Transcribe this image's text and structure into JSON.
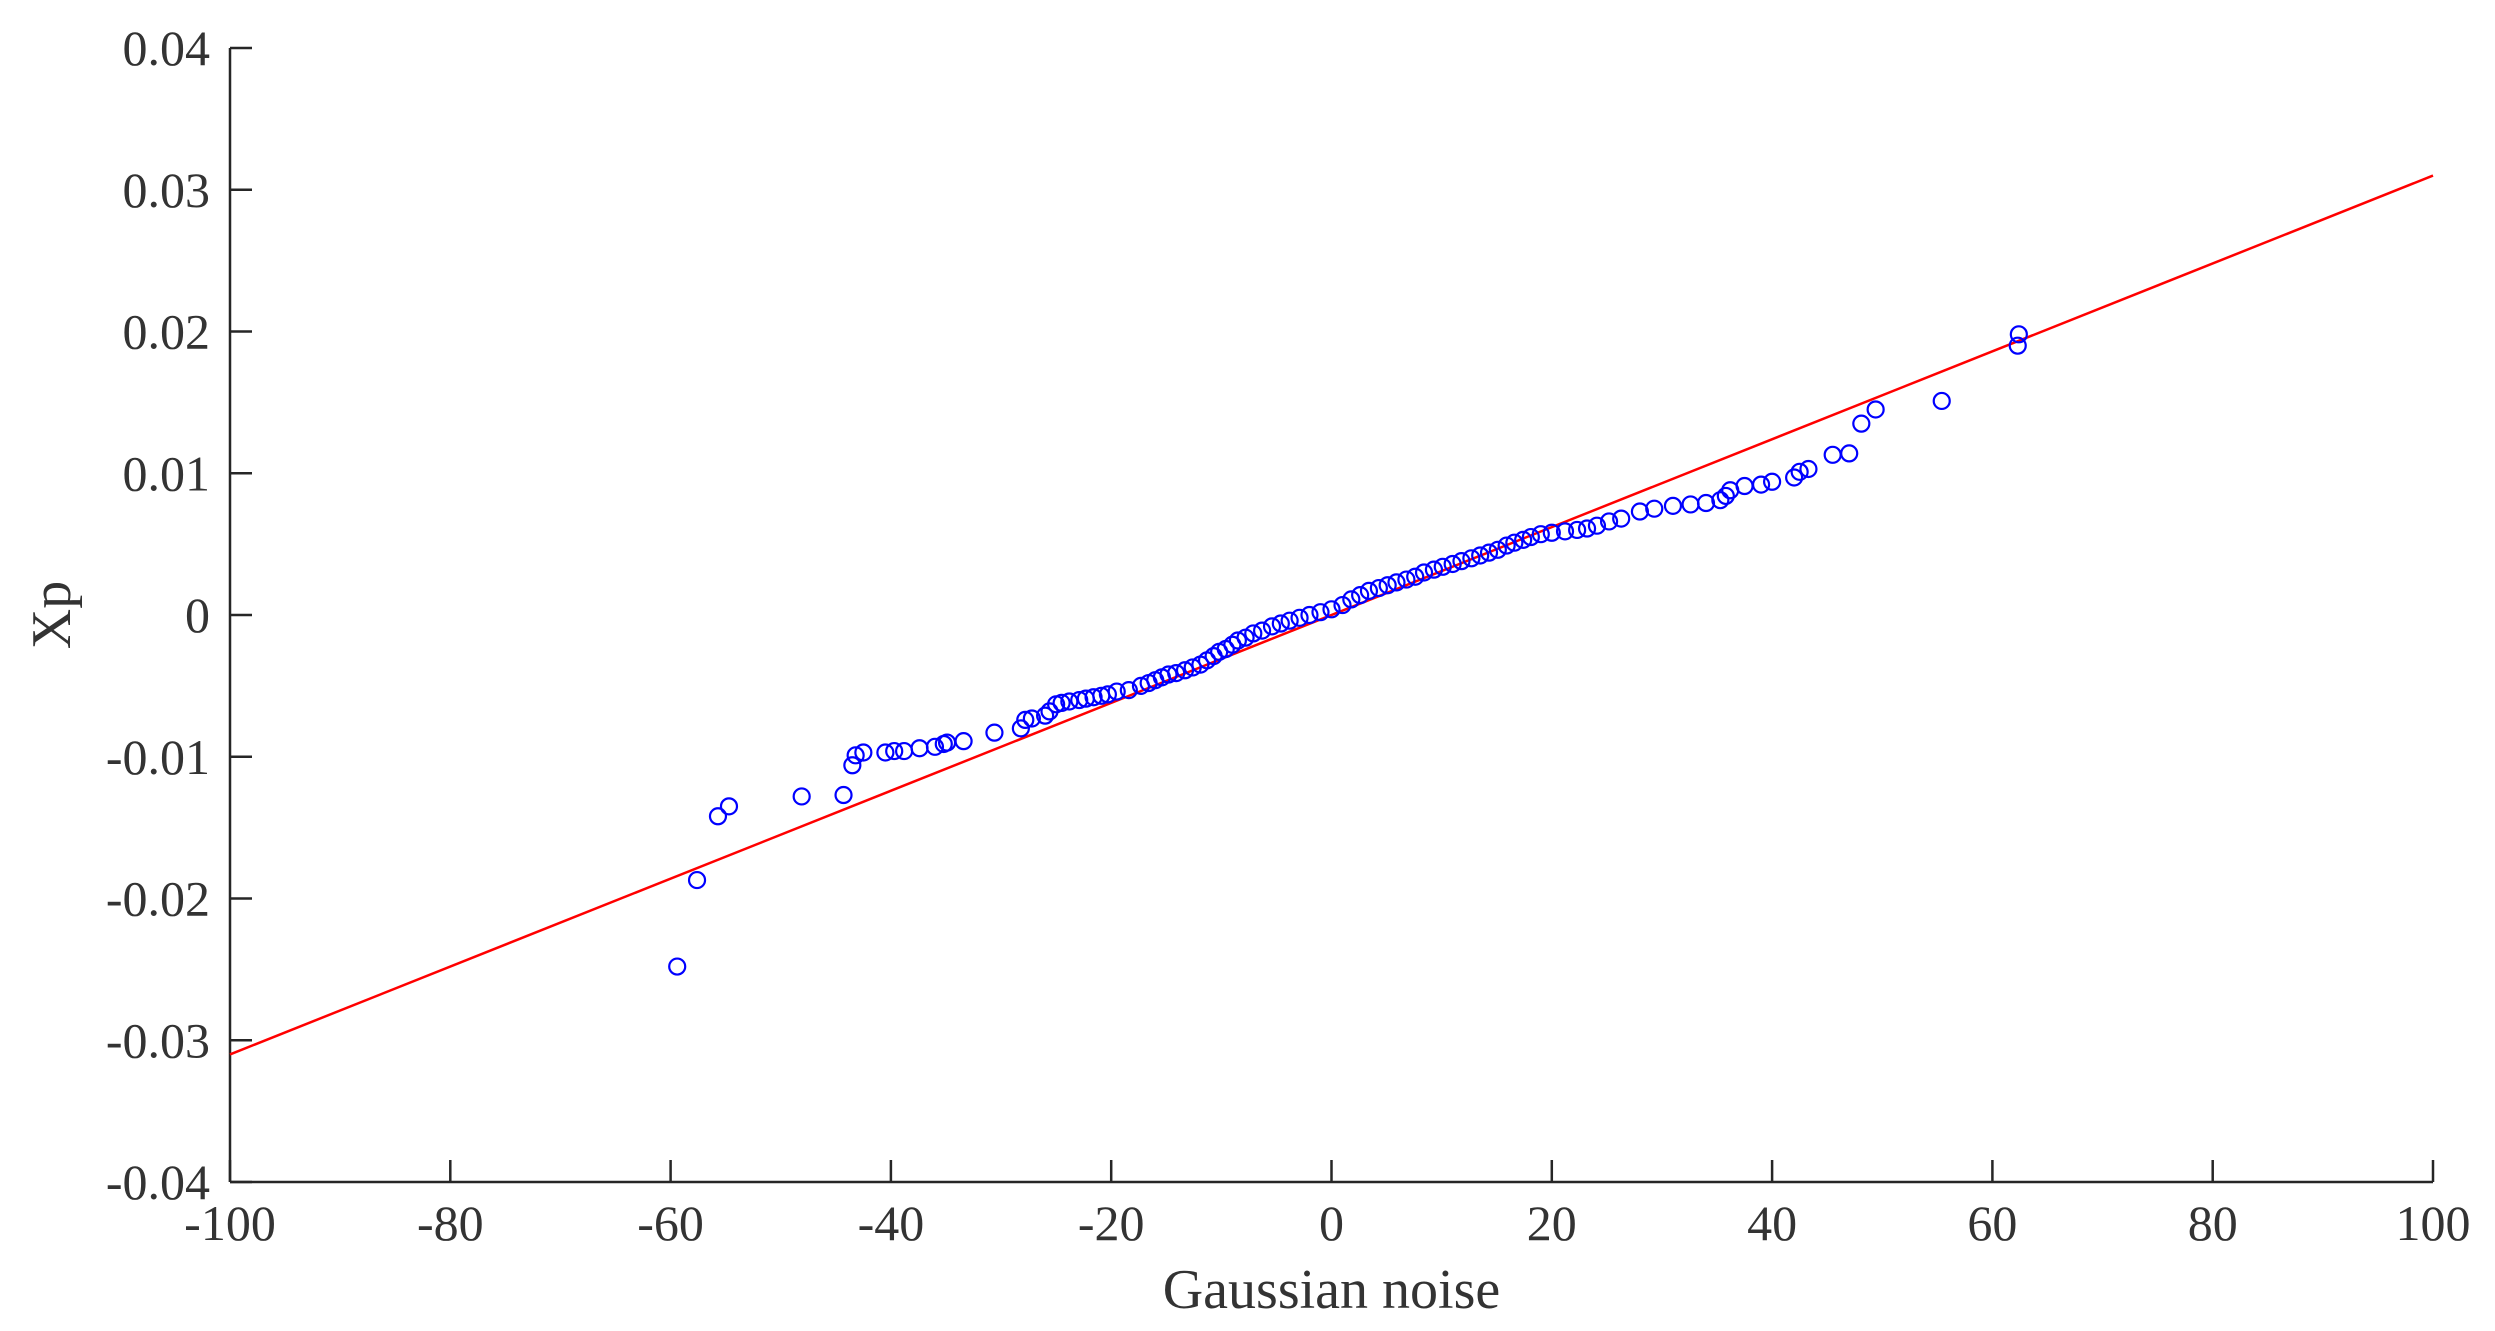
{
  "chart_data": {
    "type": "scatter",
    "xlabel": "Gaussian noise",
    "ylabel": "Xp",
    "xlim": [
      -100,
      100
    ],
    "ylim": [
      -0.04,
      0.04
    ],
    "x_ticks": [
      "-100",
      "-80",
      "-60",
      "-40",
      "-20",
      "0",
      "20",
      "40",
      "60",
      "80",
      "100"
    ],
    "y_ticks": [
      "-0.04",
      "-0.03",
      "-0.02",
      "-0.01",
      "0",
      "0.01",
      "0.02",
      "0.03",
      "0.04"
    ],
    "x_tick_values": [
      -100,
      -80,
      -60,
      -40,
      -20,
      0,
      20,
      40,
      60,
      80,
      100
    ],
    "y_tick_values": [
      -0.04,
      -0.03,
      -0.02,
      -0.01,
      0,
      0.01,
      0.02,
      0.03,
      0.04
    ],
    "grid": false,
    "reference_line": {
      "x": [
        -100,
        100
      ],
      "y": [
        -0.031,
        0.031
      ],
      "color": "#ff0000"
    },
    "marker_color": "#0000ff",
    "points": [
      [
        -59.4,
        -0.0248
      ],
      [
        -57.6,
        -0.0187
      ],
      [
        -55.7,
        -0.0142
      ],
      [
        -54.7,
        -0.0135
      ],
      [
        -48.1,
        -0.0128
      ],
      [
        -44.3,
        -0.0127
      ],
      [
        -43.5,
        -0.0106
      ],
      [
        -43.2,
        -0.0099
      ],
      [
        -42.5,
        -0.0097
      ],
      [
        -40.5,
        -0.0097
      ],
      [
        -39.7,
        -0.0096
      ],
      [
        -38.8,
        -0.0096
      ],
      [
        -37.4,
        -0.0094
      ],
      [
        -36.0,
        -0.0093
      ],
      [
        -35.2,
        -0.0091
      ],
      [
        -34.9,
        -0.009
      ],
      [
        -33.4,
        -0.0089
      ],
      [
        -30.6,
        -0.0083
      ],
      [
        -28.2,
        -0.008
      ],
      [
        -27.8,
        -0.0074
      ],
      [
        -27.2,
        -0.0073
      ],
      [
        -26.0,
        -0.0071
      ],
      [
        -25.6,
        -0.0068
      ],
      [
        -25.0,
        -0.0063
      ],
      [
        -24.5,
        -0.0062
      ],
      [
        -23.8,
        -0.0061
      ],
      [
        -22.9,
        -0.006
      ],
      [
        -22.3,
        -0.0059
      ],
      [
        -21.6,
        -0.0058
      ],
      [
        -20.9,
        -0.0057
      ],
      [
        -20.3,
        -0.0056
      ],
      [
        -19.5,
        -0.0054
      ],
      [
        -18.4,
        -0.0053
      ],
      [
        -17.3,
        -0.005
      ],
      [
        -16.6,
        -0.0048
      ],
      [
        -16.0,
        -0.0046
      ],
      [
        -15.4,
        -0.0044
      ],
      [
        -14.8,
        -0.0042
      ],
      [
        -14.1,
        -0.0041
      ],
      [
        -13.3,
        -0.0039
      ],
      [
        -12.6,
        -0.0037
      ],
      [
        -11.9,
        -0.0035
      ],
      [
        -11.3,
        -0.0032
      ],
      [
        -10.7,
        -0.0029
      ],
      [
        -10.2,
        -0.0026
      ],
      [
        -9.6,
        -0.0024
      ],
      [
        -9.0,
        -0.0021
      ],
      [
        -8.5,
        -0.0018
      ],
      [
        -7.8,
        -0.0016
      ],
      [
        -7.1,
        -0.0013
      ],
      [
        -6.3,
        -0.0011
      ],
      [
        -5.4,
        -0.0008
      ],
      [
        -4.6,
        -0.0006
      ],
      [
        -3.8,
        -0.0004
      ],
      [
        -2.9,
        -0.0002
      ],
      [
        -2.0,
        0.0
      ],
      [
        -1.0,
        0.0002
      ],
      [
        0.0,
        0.0004
      ],
      [
        1.0,
        0.0007
      ],
      [
        1.8,
        0.0011
      ],
      [
        2.6,
        0.0014
      ],
      [
        3.4,
        0.0017
      ],
      [
        4.3,
        0.0019
      ],
      [
        5.1,
        0.0021
      ],
      [
        5.9,
        0.0023
      ],
      [
        6.8,
        0.0025
      ],
      [
        7.6,
        0.0027
      ],
      [
        8.4,
        0.003
      ],
      [
        9.3,
        0.0032
      ],
      [
        10.1,
        0.0034
      ],
      [
        11.0,
        0.0036
      ],
      [
        11.8,
        0.0038
      ],
      [
        12.7,
        0.004
      ],
      [
        13.5,
        0.0042
      ],
      [
        14.3,
        0.0044
      ],
      [
        15.1,
        0.0046
      ],
      [
        15.9,
        0.0049
      ],
      [
        16.6,
        0.0051
      ],
      [
        17.4,
        0.0053
      ],
      [
        18.1,
        0.0055
      ],
      [
        19.0,
        0.0057
      ],
      [
        20.0,
        0.0058
      ],
      [
        21.2,
        0.0059
      ],
      [
        22.3,
        0.006
      ],
      [
        23.2,
        0.0061
      ],
      [
        24.1,
        0.0063
      ],
      [
        25.2,
        0.0066
      ],
      [
        26.3,
        0.0068
      ],
      [
        28.0,
        0.0073
      ],
      [
        29.3,
        0.0075
      ],
      [
        31.0,
        0.0077
      ],
      [
        32.6,
        0.0078
      ],
      [
        34.0,
        0.0079
      ],
      [
        35.3,
        0.0081
      ],
      [
        35.8,
        0.0084
      ],
      [
        36.2,
        0.0088
      ],
      [
        37.5,
        0.0091
      ],
      [
        39.0,
        0.0092
      ],
      [
        40.0,
        0.0094
      ],
      [
        42.0,
        0.0097
      ],
      [
        42.5,
        0.0101
      ],
      [
        43.3,
        0.0103
      ],
      [
        45.5,
        0.0113
      ],
      [
        47.0,
        0.0114
      ],
      [
        48.1,
        0.0135
      ],
      [
        49.4,
        0.0145
      ],
      [
        55.4,
        0.0151
      ],
      [
        62.3,
        0.019
      ],
      [
        62.4,
        0.0198
      ]
    ]
  }
}
